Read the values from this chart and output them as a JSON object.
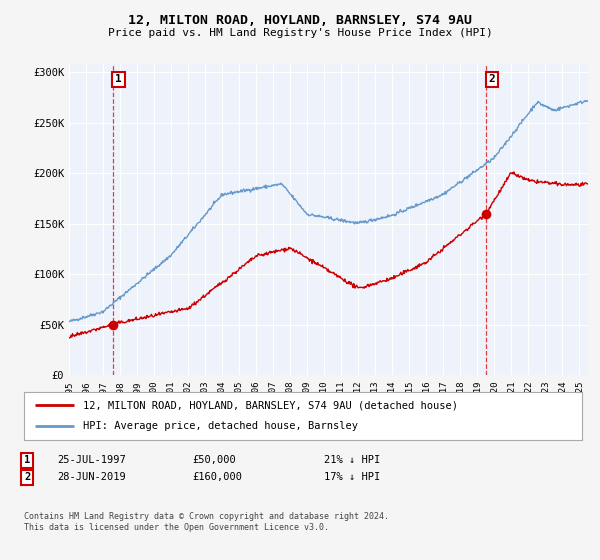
{
  "title": "12, MILTON ROAD, HOYLAND, BARNSLEY, S74 9AU",
  "subtitle": "Price paid vs. HM Land Registry's House Price Index (HPI)",
  "legend_line1": "12, MILTON ROAD, HOYLAND, BARNSLEY, S74 9AU (detached house)",
  "legend_line2": "HPI: Average price, detached house, Barnsley",
  "transaction1_date": "25-JUL-1997",
  "transaction1_price": "£50,000",
  "transaction1_hpi": "21% ↓ HPI",
  "transaction2_date": "28-JUN-2019",
  "transaction2_price": "£160,000",
  "transaction2_hpi": "17% ↓ HPI",
  "footnote": "Contains HM Land Registry data © Crown copyright and database right 2024.\nThis data is licensed under the Open Government Licence v3.0.",
  "red_line_color": "#cc0000",
  "blue_line_color": "#6699cc",
  "marker_color": "#cc0000",
  "dashed_line_color": "#dd2222",
  "plot_bg_color": "#eef2fb",
  "grid_color": "#ffffff",
  "fig_bg_color": "#f5f5f5"
}
